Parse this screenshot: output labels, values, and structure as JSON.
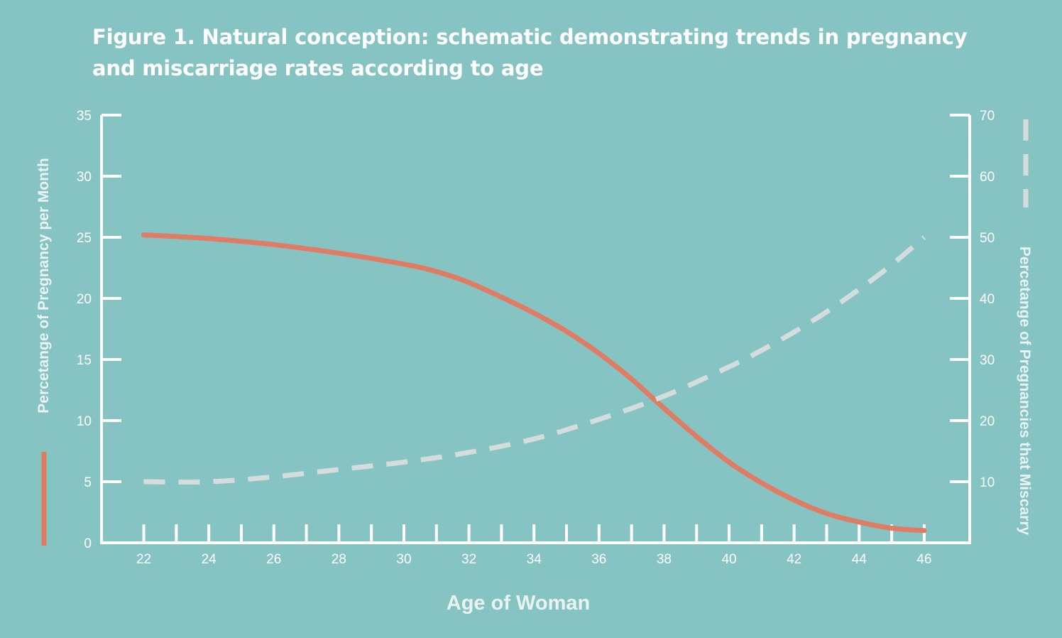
{
  "figure_title": "Figure 1. Natural conception: schematic demonstrating trends in pregnancy and miscarriage rates according to age",
  "colors": {
    "background": "#86c3c3",
    "axis": "#ffffff",
    "pregnancy_line": "#e07b64",
    "miscarriage_line": "#d5dcdc"
  },
  "chart_data": {
    "type": "line",
    "title": "Figure 1. Natural conception: schematic demonstrating trends in pregnancy and miscarriage rates according to age",
    "xlabel": "Age of Woman",
    "ylabel_left": "Percetange of Pregnancy per Month",
    "ylabel_right": "Percetange of Pregnancies that Miscarry",
    "xlim": [
      20.7,
      47.4
    ],
    "ylim_left": [
      0,
      35
    ],
    "ylim_right": [
      0,
      70
    ],
    "x_ticks": [
      22,
      24,
      26,
      28,
      30,
      32,
      34,
      36,
      38,
      40,
      42,
      44,
      46
    ],
    "y_ticks_left": [
      0,
      5,
      10,
      15,
      20,
      25,
      30,
      35
    ],
    "y_ticks_right": [
      10,
      20,
      30,
      40,
      50,
      60,
      70
    ],
    "grid": false,
    "series": [
      {
        "name": "",
        "axis": "left",
        "style": "solid",
        "x": [
          22,
          24,
          26,
          28,
          30,
          31,
          32,
          33,
          34,
          35,
          36,
          37,
          38,
          39,
          40,
          41,
          42,
          43,
          44,
          45,
          46
        ],
        "y": [
          25.2,
          24.9,
          24.4,
          23.7,
          22.8,
          22.2,
          21.3,
          20.1,
          18.8,
          17.3,
          15.5,
          13.4,
          11.0,
          8.7,
          6.6,
          4.9,
          3.5,
          2.4,
          1.7,
          1.2,
          1.0
        ]
      },
      {
        "name": "",
        "axis": "right",
        "style": "dashed",
        "x": [
          22,
          24,
          26,
          28,
          30,
          32,
          34,
          36,
          38,
          40,
          41,
          42,
          43,
          44,
          45,
          46
        ],
        "y": [
          10.0,
          10.0,
          10.8,
          12.0,
          13.2,
          14.8,
          17.0,
          20.2,
          24.0,
          28.8,
          31.5,
          34.5,
          37.8,
          41.5,
          45.5,
          50.0
        ]
      }
    ]
  }
}
